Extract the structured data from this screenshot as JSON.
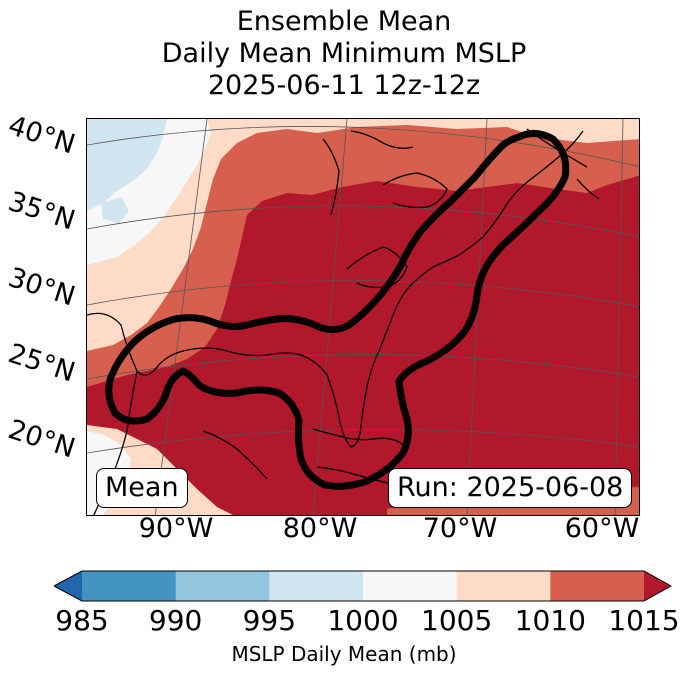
{
  "title": {
    "line1": "Ensemble Mean",
    "line2": "Daily Mean Minimum MSLP",
    "line3": "2025-06-11 12z-12z"
  },
  "map": {
    "lat_labels": [
      "40°N",
      "35°N",
      "30°N",
      "25°N",
      "20°N"
    ],
    "lon_labels": [
      "90°W",
      "80°W",
      "70°W",
      "60°W"
    ],
    "mean_label": "Mean",
    "run_label": "Run: 2025-06-08"
  },
  "colorbar": {
    "ticks": [
      "985",
      "990",
      "995",
      "1000",
      "1005",
      "1010",
      "1015"
    ],
    "label": "MSLP Daily Mean (mb)",
    "colors": [
      "#2166ac",
      "#4393c3",
      "#92c5de",
      "#d1e5f0",
      "#f7f7f7",
      "#fddbc7",
      "#d6604d",
      "#b2182b"
    ]
  }
}
